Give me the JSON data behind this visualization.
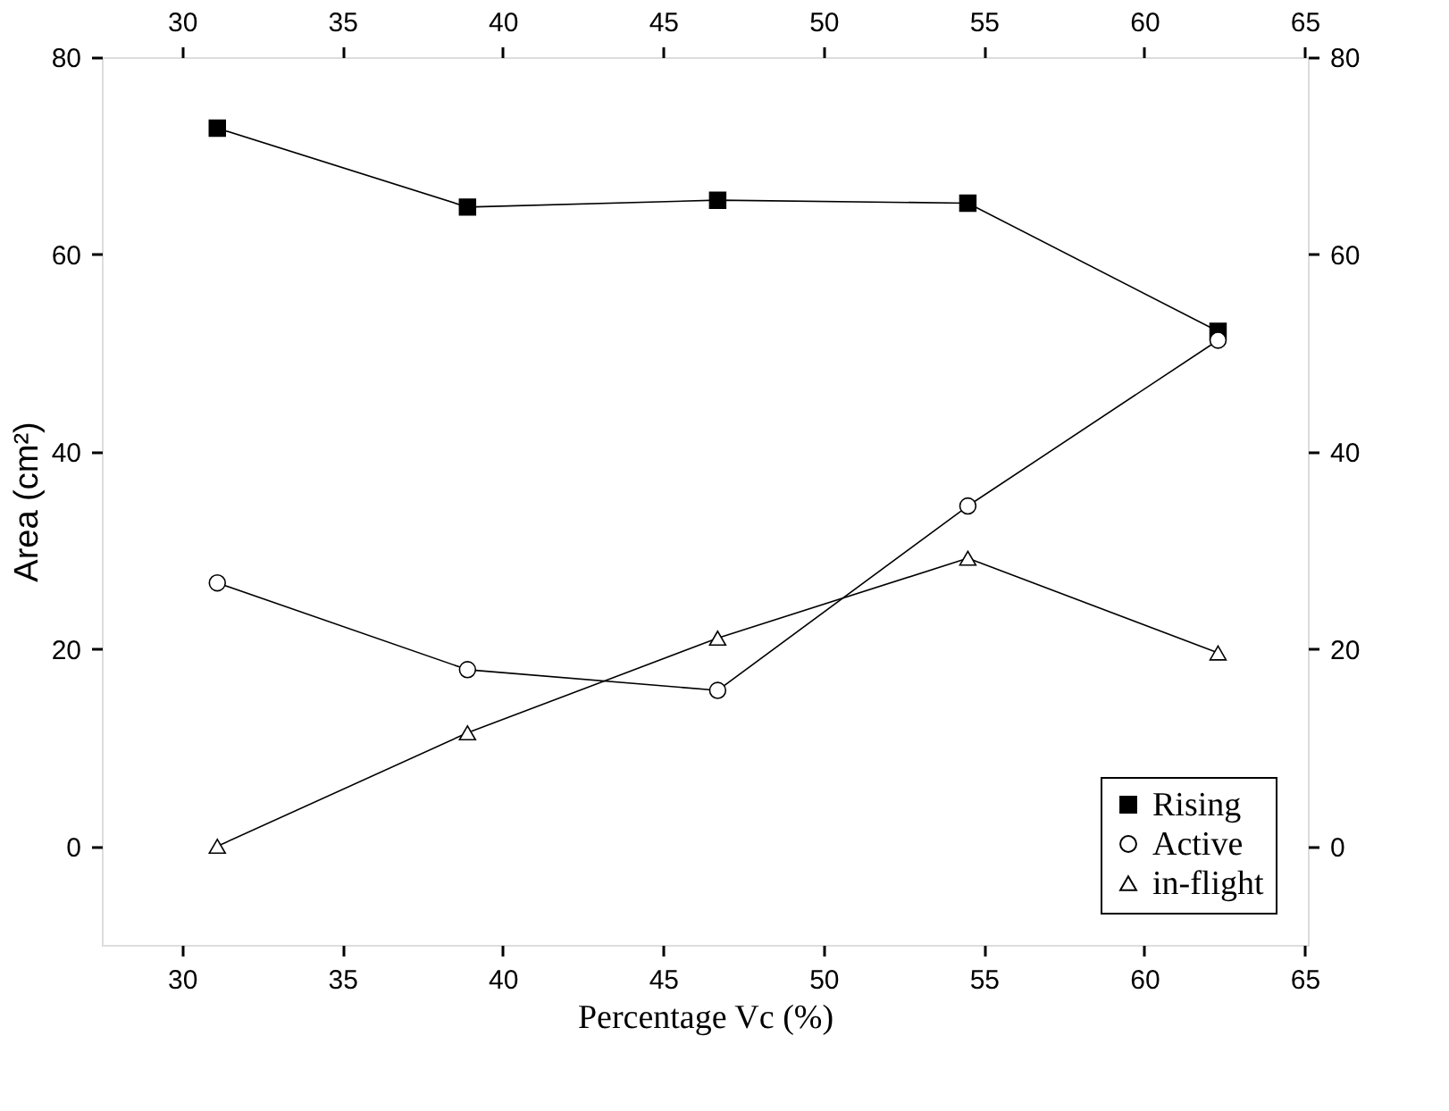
{
  "chart_data": {
    "type": "line",
    "xlabel": "Percentage Vc (%)",
    "ylabel": "Area (cm²)",
    "x": [
      31.1,
      38.9,
      46.7,
      54.5,
      62.3
    ],
    "series": [
      {
        "name": "Rising",
        "color": "#000000",
        "marker": "square",
        "values": [
          72.8,
          64.8,
          65.5,
          65.2,
          52.2
        ]
      },
      {
        "name": "Active",
        "color": "#000000",
        "marker": "circle",
        "values": [
          26.7,
          17.9,
          15.8,
          34.5,
          51.3
        ]
      },
      {
        "name": "in-flight",
        "color": "#000000",
        "marker": "triangle",
        "values": [
          0,
          11.5,
          21.1,
          29.2,
          19.6
        ]
      }
    ],
    "xlim": [
      27.5,
      65.1
    ],
    "xticks": [
      30,
      35,
      40,
      45,
      50,
      55,
      60,
      65
    ],
    "x2lim": [
      27.5,
      65.1
    ],
    "x2ticks": [
      30,
      35,
      40,
      45,
      50,
      55,
      60,
      65
    ],
    "ylim": [
      -10,
      80
    ],
    "yticks": [
      0,
      20,
      40,
      60,
      80
    ],
    "y2lim": [
      -10,
      80
    ],
    "y2ticks": [
      0,
      20,
      40,
      60,
      80
    ],
    "legend": "bottom right",
    "grid": false,
    "line_style": "solid"
  }
}
